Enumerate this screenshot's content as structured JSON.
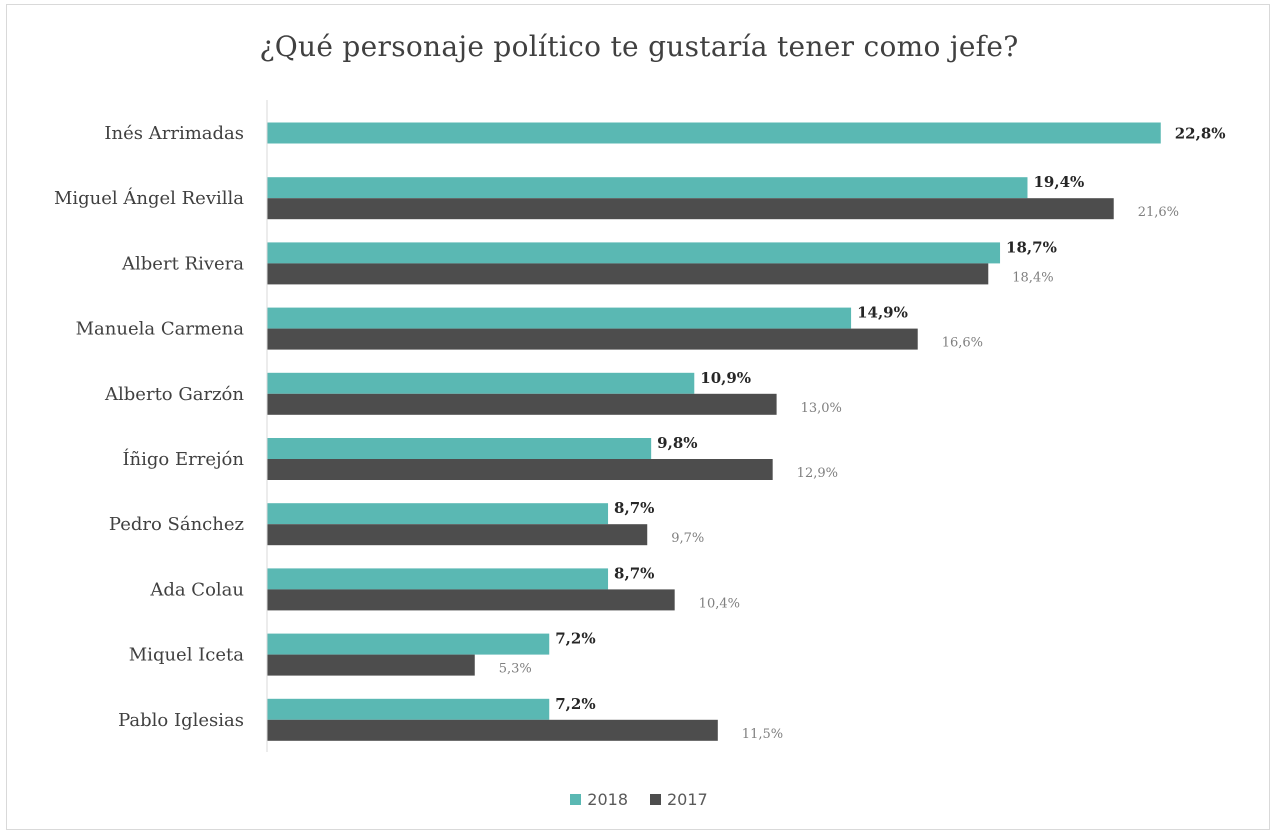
{
  "chart_data": {
    "type": "bar",
    "orientation": "horizontal",
    "title": "¿Qué personaje político te gustaría tener como jefe?",
    "categories": [
      "Inés Arrimadas",
      "Miguel Ángel Revilla",
      "Albert Rivera",
      "Manuela Carmena",
      "Alberto Garzón",
      "Íñigo Errejón",
      "Pedro Sánchez",
      "Ada Colau",
      "Miquel Iceta",
      "Pablo Iglesias"
    ],
    "series": [
      {
        "name": "2018",
        "color": "#5ab8b3",
        "values": [
          22.8,
          19.4,
          18.7,
          14.9,
          10.9,
          9.8,
          8.7,
          8.7,
          7.2,
          7.2
        ],
        "labels": [
          "22,8%",
          "19,4%",
          "18,7%",
          "14,9%",
          "10,9%",
          "9,8%",
          "8,7%",
          "8,7%",
          "7,2%",
          "7,2%"
        ]
      },
      {
        "name": "2017",
        "color": "#4d4d4d",
        "values": [
          null,
          21.6,
          18.4,
          16.6,
          13.0,
          12.9,
          9.7,
          10.4,
          5.3,
          11.5
        ],
        "labels": [
          "",
          "21,6%",
          "18,4%",
          "16,6%",
          "13,0%",
          "12,9%",
          "9,7%",
          "10,4%",
          "5,3%",
          "11,5%"
        ]
      }
    ],
    "xlim": [
      0,
      23
    ],
    "grid": false,
    "legend_position": "bottom"
  }
}
